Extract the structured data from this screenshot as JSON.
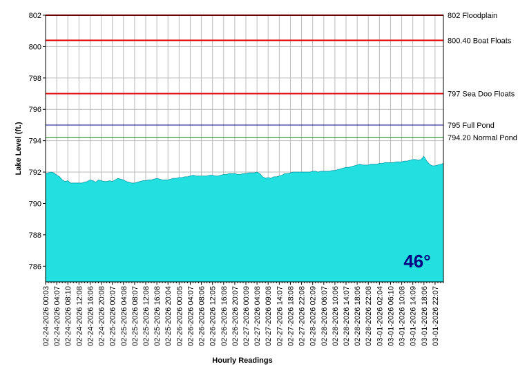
{
  "chart_data": {
    "type": "area",
    "y_label": "Lake Level (ft.)",
    "x_label": "Hourly Readings",
    "badge": "46°",
    "color": "#22e0e0",
    "line_color": "#0a9aa8",
    "grid": true,
    "ylim": [
      785,
      802
    ],
    "yticks": [
      786,
      788,
      790,
      792,
      794,
      796,
      798,
      800,
      802
    ],
    "reference_lines": [
      {
        "value": 802,
        "label": "802 Floodplain",
        "color": "#e00000"
      },
      {
        "value": 800.4,
        "label": "800.40 Boat Floats",
        "color": "#e00000"
      },
      {
        "value": 797,
        "label": "797 Sea Doo Floats",
        "color": "#e00000"
      },
      {
        "value": 795,
        "label": "795 Full Pond",
        "color": "#000080"
      },
      {
        "value": 794.2,
        "label": "794.20 Normal Pond",
        "color": "#008000"
      }
    ],
    "categories": [
      "02-24-2026 00:03",
      null,
      null,
      null,
      "02-24-2026 04:07",
      null,
      null,
      null,
      "02-24-2026 08:10",
      null,
      null,
      null,
      "02-24-2026 12:08",
      null,
      null,
      null,
      "02-24-2026 16:06",
      null,
      null,
      null,
      "02-24-2026 20:08",
      null,
      null,
      null,
      "02-25-2026 00:07",
      null,
      null,
      null,
      "02-25-2026 04:08",
      null,
      null,
      null,
      "02-25-2026 08:07",
      null,
      null,
      null,
      "02-25-2026 12:08",
      null,
      null,
      null,
      "02-25-2026 16:08",
      null,
      null,
      null,
      "02-25-2026 20:04",
      null,
      null,
      null,
      "02-26-2026 00:05",
      null,
      null,
      null,
      "02-26-2026 04:07",
      null,
      null,
      null,
      "02-26-2026 08:06",
      null,
      null,
      null,
      "02-26-2026 12:05",
      null,
      null,
      null,
      "02-26-2026 16:08",
      null,
      null,
      null,
      "02-26-2026 20:07",
      null,
      null,
      null,
      "02-27-2026 00:09",
      null,
      null,
      null,
      "02-27-2026 04:08",
      null,
      null,
      null,
      "02-27-2026 09:08",
      null,
      null,
      null,
      "02-27-2026 14:07",
      null,
      null,
      null,
      "02-27-2026 18:08",
      null,
      null,
      null,
      "02-27-2026 22:08",
      null,
      null,
      null,
      "02-28-2026 02:09",
      null,
      null,
      null,
      "02-28-2026 06:07",
      null,
      null,
      null,
      "02-28-2026 10:06",
      null,
      null,
      null,
      "02-28-2026 14:07",
      null,
      null,
      null,
      "02-28-2026 18:06",
      null,
      null,
      null,
      "02-28-2026 22:08",
      null,
      null,
      null,
      "03-01-2026 02:04",
      null,
      null,
      null,
      "03-01-2026 06:10",
      null,
      null,
      null,
      "03-01-2026 10:08",
      null,
      null,
      null,
      "03-01-2026 14:09",
      null,
      null,
      null,
      "03-01-2026 18:06",
      null,
      null,
      null,
      "03-01-2026 22:07",
      null,
      null,
      null
    ],
    "values": [
      791.9,
      791.95,
      792.0,
      791.95,
      791.8,
      791.7,
      791.5,
      791.4,
      791.45,
      791.3,
      791.3,
      791.3,
      791.3,
      791.3,
      791.35,
      791.4,
      791.5,
      791.45,
      791.35,
      791.5,
      791.45,
      791.4,
      791.4,
      791.45,
      791.4,
      791.5,
      791.6,
      791.55,
      791.5,
      791.4,
      791.35,
      791.3,
      791.3,
      791.35,
      791.4,
      791.45,
      791.45,
      791.5,
      791.5,
      791.55,
      791.6,
      791.55,
      791.5,
      791.5,
      791.5,
      791.55,
      791.6,
      791.6,
      791.65,
      791.65,
      791.7,
      791.7,
      791.75,
      791.8,
      791.75,
      791.75,
      791.75,
      791.75,
      791.75,
      791.8,
      791.8,
      791.75,
      791.75,
      791.8,
      791.85,
      791.85,
      791.9,
      791.9,
      791.9,
      791.85,
      791.85,
      791.9,
      791.9,
      791.95,
      791.95,
      791.95,
      792.0,
      791.9,
      791.7,
      791.6,
      791.65,
      791.6,
      791.7,
      791.7,
      791.75,
      791.8,
      791.9,
      791.9,
      791.95,
      792.0,
      792.0,
      792.0,
      792.0,
      792.0,
      792.0,
      792.0,
      792.05,
      792.05,
      792.0,
      792.05,
      792.05,
      792.05,
      792.05,
      792.1,
      792.1,
      792.15,
      792.2,
      792.25,
      792.3,
      792.3,
      792.35,
      792.4,
      792.45,
      792.5,
      792.45,
      792.45,
      792.45,
      792.5,
      792.5,
      792.5,
      792.55,
      792.55,
      792.6,
      792.6,
      792.6,
      792.6,
      792.65,
      792.65,
      792.65,
      792.7,
      792.7,
      792.75,
      792.8,
      792.8,
      792.75,
      792.8,
      793.0,
      792.7,
      792.5,
      792.4,
      792.4,
      792.45,
      792.5,
      792.55
    ]
  }
}
